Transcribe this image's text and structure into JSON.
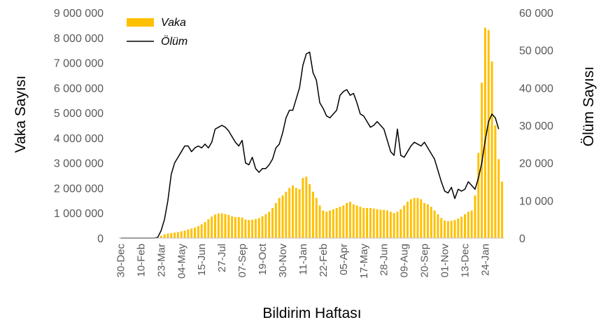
{
  "chart_data": {
    "type": "bar+line",
    "xlabel": "Bildirim Haftası",
    "ylabel_left": "Vaka Sayısı",
    "ylabel_right": "Ölüm Sayısı",
    "ylim_left": [
      0,
      9000000
    ],
    "ylim_right": [
      0,
      60000
    ],
    "yticks_left": [
      "0",
      "1 000 000",
      "2 000 000",
      "3 000 000",
      "4 000 000",
      "5 000 000",
      "6 000 000",
      "7 000 000",
      "8 000 000",
      "9 000 000"
    ],
    "yticks_right": [
      "0",
      "10 000",
      "20 000",
      "30 000",
      "40 000",
      "50 000",
      "60 000"
    ],
    "xtick_labels": [
      "30-Dec",
      "10-Feb",
      "23-Mar",
      "04-May",
      "15-Jun",
      "27-Jul",
      "07-Sep",
      "19-Oct",
      "30-Nov",
      "11-Jan",
      "22-Feb",
      "05-Apr",
      "17-May",
      "28-Jun",
      "09-Aug",
      "20-Sep",
      "01-Nov",
      "13-Dec",
      "24-Jan"
    ],
    "xtick_index": [
      0,
      6,
      12,
      18,
      24,
      30,
      36,
      42,
      48,
      54,
      60,
      66,
      72,
      78,
      84,
      90,
      96,
      102,
      108
    ],
    "legend_position": "top-left",
    "grid": false,
    "colors": {
      "vaka": "#FFC000",
      "olum": "#000000",
      "axis": "#bfbfbf",
      "tick_text": "#595959"
    },
    "series": [
      {
        "name": "Vaka",
        "type": "bar",
        "axis": "left",
        "values": [
          0,
          0,
          0,
          0,
          0,
          0,
          0,
          0,
          0,
          0,
          0,
          20000,
          90000,
          150000,
          180000,
          200000,
          220000,
          240000,
          270000,
          300000,
          340000,
          380000,
          420000,
          480000,
          550000,
          640000,
          750000,
          860000,
          940000,
          980000,
          990000,
          960000,
          920000,
          870000,
          840000,
          840000,
          820000,
          740000,
          720000,
          730000,
          760000,
          800000,
          870000,
          950000,
          1050000,
          1200000,
          1400000,
          1600000,
          1700000,
          1850000,
          2000000,
          2100000,
          2000000,
          1950000,
          2400000,
          2450000,
          2150000,
          1850000,
          1600000,
          1300000,
          1100000,
          1050000,
          1100000,
          1150000,
          1200000,
          1250000,
          1300000,
          1400000,
          1450000,
          1350000,
          1300000,
          1250000,
          1200000,
          1200000,
          1200000,
          1180000,
          1150000,
          1130000,
          1130000,
          1100000,
          1050000,
          1000000,
          1050000,
          1150000,
          1300000,
          1450000,
          1550000,
          1600000,
          1600000,
          1550000,
          1400000,
          1350000,
          1250000,
          1100000,
          950000,
          800000,
          700000,
          680000,
          690000,
          720000,
          780000,
          850000,
          950000,
          1050000,
          1100000,
          1700000,
          3400000,
          6200000,
          8400000,
          8300000,
          7050000,
          4500000,
          3150000,
          2250000
        ],
        "ylim": [
          0,
          9000000
        ]
      },
      {
        "name": "Ölüm",
        "type": "line",
        "axis": "right",
        "values": [
          0,
          0,
          0,
          0,
          0,
          0,
          0,
          0,
          0,
          0,
          0,
          200,
          2000,
          5000,
          10000,
          17000,
          20000,
          21500,
          23000,
          24500,
          24500,
          23000,
          24000,
          24500,
          24000,
          25000,
          24000,
          25500,
          29000,
          29500,
          30000,
          29500,
          28500,
          27000,
          25500,
          24500,
          26000,
          20000,
          19500,
          21500,
          18500,
          17500,
          18500,
          18500,
          19500,
          21000,
          24000,
          25000,
          28000,
          32000,
          34000,
          34000,
          37000,
          40000,
          46000,
          49000,
          49500,
          44000,
          42000,
          36000,
          34500,
          32500,
          32000,
          33000,
          34000,
          38000,
          39000,
          39500,
          38000,
          38500,
          36000,
          33000,
          32500,
          31000,
          29500,
          30000,
          31000,
          30000,
          29000,
          26000,
          23000,
          22000,
          29000,
          22000,
          21500,
          23000,
          24500,
          25500,
          25000,
          24500,
          25500,
          24000,
          22500,
          21000,
          18000,
          15000,
          12500,
          12000,
          13500,
          10500,
          13000,
          12500,
          13000,
          15000,
          14000,
          13000,
          16000,
          20000,
          26000,
          31000,
          33000,
          32000,
          29000
        ]
      }
    ]
  }
}
